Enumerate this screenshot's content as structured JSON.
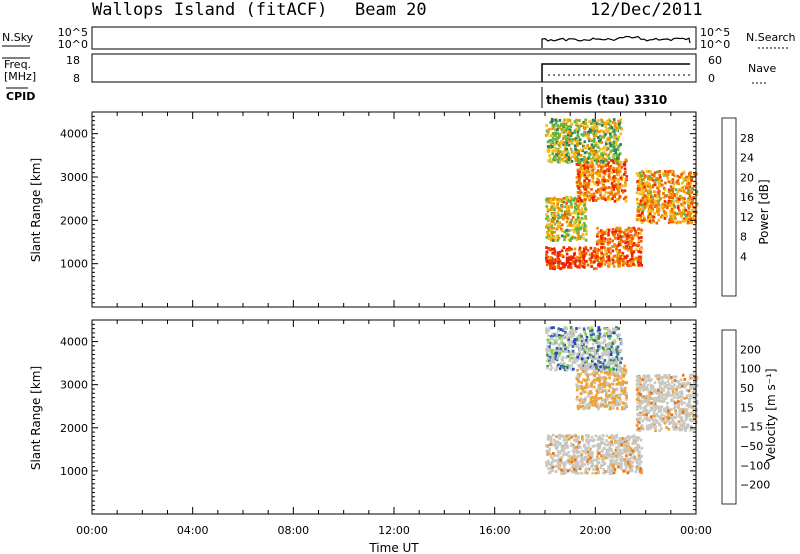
{
  "header": {
    "station": "Wallops Island (fitACF)",
    "beam": "Beam 20",
    "date": "12/Dec/2011"
  },
  "top_panels": {
    "nsky_label": "N.Sky",
    "nsky_ticks": [
      "10^5",
      "10^0"
    ],
    "nsearch_label": "N.Search",
    "nsearch_ticks": [
      "10^5",
      "10^0"
    ],
    "freq_label": "Freq.",
    "freq_unit": "[MHz]",
    "freq_ticks": [
      "18",
      "8"
    ],
    "nave_label": "Nave",
    "nave_ticks": [
      "60",
      "0"
    ],
    "cpid_label": "CPID",
    "cpid_value": "themis (tau) 3310"
  },
  "colors": {
    "power_scale": [
      "#0000ff",
      "#1a4fa8",
      "#2d7d5a",
      "#56b848",
      "#f0c020",
      "#f39000",
      "#f06000",
      "#ee2000",
      "#ff0000"
    ],
    "velocity_scale": [
      "#2340c8",
      "#2f6fb0",
      "#3a8d4a",
      "#7ed03a",
      "#c8c8c0",
      "#f0a030",
      "#f07010",
      "#f04010",
      "#ff1000"
    ],
    "velocity_ground": "#c8c8c0"
  },
  "chart_data": [
    {
      "type": "heatmap",
      "panel": "power",
      "xlabel": "",
      "ylabel": "Slant Range [km]",
      "xlim": [
        0,
        24
      ],
      "ylim": [
        0,
        4500
      ],
      "x_tick_labels": [
        "00:00",
        "04:00",
        "08:00",
        "12:00",
        "16:00",
        "20:00",
        "00:00"
      ],
      "y_tick_labels": [
        "1000",
        "2000",
        "3000",
        "4000"
      ],
      "colorbar_label": "Power [dB]",
      "colorbar_ticks": [
        "28",
        "24",
        "20",
        "16",
        "12",
        "8",
        "4"
      ],
      "colorbar_range": [
        0,
        32
      ],
      "data_start_hour": 18.0,
      "echo_regions_note_hidden": "",
      "regions": [
        {
          "t": [
            18.0,
            20.0
          ],
          "range": [
            850,
            1350
          ],
          "level": 30
        },
        {
          "t": [
            20.0,
            21.8
          ],
          "range": [
            900,
            1800
          ],
          "level": 26
        },
        {
          "t": [
            18.0,
            19.6
          ],
          "range": [
            1500,
            2500
          ],
          "level": 18
        },
        {
          "t": [
            19.2,
            21.2
          ],
          "range": [
            2400,
            3400
          ],
          "level": 24
        },
        {
          "t": [
            21.6,
            24.0
          ],
          "range": [
            1900,
            3100
          ],
          "level": 22
        },
        {
          "t": [
            18.0,
            21.0
          ],
          "range": [
            3300,
            4300
          ],
          "level": 16
        }
      ]
    },
    {
      "type": "heatmap",
      "panel": "velocity",
      "xlabel": "Time UT",
      "ylabel": "Slant Range [km]",
      "xlim": [
        0,
        24
      ],
      "ylim": [
        0,
        4500
      ],
      "x_tick_labels": [
        "00:00",
        "04:00",
        "08:00",
        "12:00",
        "16:00",
        "20:00",
        "00:00"
      ],
      "y_tick_labels": [
        "1000",
        "2000",
        "3000",
        "4000"
      ],
      "colorbar_label": "Velocity [m s⁻¹]",
      "colorbar_ticks": [
        "200",
        "100",
        "50",
        "15",
        "−15",
        "−50",
        "−100",
        "−200"
      ],
      "data_start_hour": 18.0,
      "regions": [
        {
          "t": [
            18.0,
            21.8
          ],
          "range": [
            900,
            1800
          ],
          "level": 0
        },
        {
          "t": [
            21.6,
            24.0
          ],
          "range": [
            1900,
            3200
          ],
          "level": 0
        },
        {
          "t": [
            19.2,
            21.2
          ],
          "range": [
            2400,
            3400
          ],
          "level": -20
        },
        {
          "t": [
            18.0,
            21.0
          ],
          "range": [
            3300,
            4300
          ],
          "level": 10
        }
      ]
    }
  ]
}
